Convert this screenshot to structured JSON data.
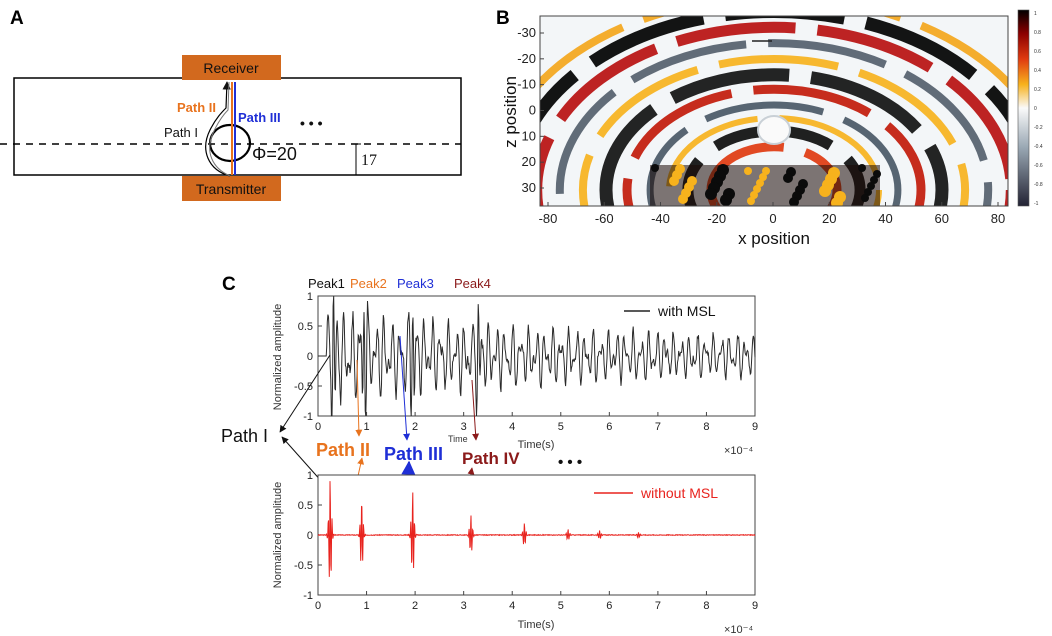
{
  "panel_a": {
    "letter": "A",
    "receiver_label": "Receiver",
    "transmitter_label": "Transmitter",
    "path1_label": "Path I",
    "path2_label": "Path II",
    "path3_label": "Path III",
    "ellipsis": "• • •",
    "diameter_label": "Φ=20",
    "offset_label": "17",
    "colors": {
      "box": "#d2691e",
      "path2": "#e8731e",
      "path3": "#1f2fd6"
    }
  },
  "panel_b": {
    "letter": "B",
    "xlabel": "x position",
    "ylabel": "z position",
    "xticks": [
      "-80",
      "-60",
      "-40",
      "-20",
      "0",
      "20",
      "40",
      "60",
      "80"
    ],
    "yticks": [
      "-30",
      "-20",
      "-10",
      "0",
      "10",
      "20",
      "30"
    ],
    "colorbar_ticks": [
      "1",
      "0.8",
      "0.6",
      "0.4",
      "0.2",
      "0",
      "-0.2",
      "-0.4",
      "-0.6",
      "-0.8",
      "-1"
    ]
  },
  "panel_c": {
    "letter": "C",
    "peak_labels": [
      {
        "text": "Peak1",
        "color": "#111111"
      },
      {
        "text": "Peak2",
        "color": "#e8731e"
      },
      {
        "text": "Peak3",
        "color": "#1f2fd6"
      },
      {
        "text": "Peak4",
        "color": "#8b1a1a"
      }
    ],
    "path_labels": [
      {
        "text": "Path I",
        "color": "#111111"
      },
      {
        "text": "Path II",
        "color": "#e8731e"
      },
      {
        "text": "Path III",
        "color": "#1f2fd6"
      },
      {
        "text": "Path IV",
        "color": "#8b1a1a"
      }
    ],
    "ellipsis": "• • •",
    "stray_label": "Time",
    "exponent": "×10⁻⁴"
  },
  "chart_data": [
    {
      "type": "line",
      "title": "",
      "xlabel": "Time(s)",
      "ylabel": "Normalized amplitude",
      "xlim": [
        0,
        9
      ],
      "ylim": [
        -1,
        1
      ],
      "x_scale_note": "×10^-4",
      "xticks": [
        "0",
        "1",
        "2",
        "3",
        "4",
        "5",
        "6",
        "7",
        "8",
        "9"
      ],
      "yticks": [
        "1",
        "0.5",
        "0",
        "-0.5",
        "-1"
      ],
      "series": [
        {
          "name": "with MSL",
          "color": "#222222",
          "start": 0.18,
          "dominant_peaks": [
            [
              0.32,
              0.95
            ],
            [
              0.95,
              1.0
            ],
            [
              1.95,
              0.9
            ],
            [
              3.3,
              0.75
            ]
          ]
        }
      ],
      "legend": "top-right"
    },
    {
      "type": "line",
      "title": "",
      "xlabel": "Time(s)",
      "ylabel": "Normalized amplitude",
      "xlim": [
        0,
        9
      ],
      "ylim": [
        -1,
        1
      ],
      "x_scale_note": "×10^-4",
      "xticks": [
        "0",
        "1",
        "2",
        "3",
        "4",
        "5",
        "6",
        "7",
        "8",
        "9"
      ],
      "yticks": [
        "1",
        "0.5",
        "0",
        "-0.5",
        "-1"
      ],
      "series": [
        {
          "name": "without MSL",
          "color": "#e8231e",
          "pulses": [
            [
              0.25,
              0.95
            ],
            [
              0.9,
              0.6
            ],
            [
              1.95,
              0.75
            ],
            [
              3.15,
              0.35
            ],
            [
              4.25,
              0.2
            ],
            [
              5.15,
              0.1
            ],
            [
              5.8,
              0.08
            ],
            [
              6.6,
              0.05
            ]
          ]
        }
      ],
      "legend": "top-right"
    }
  ]
}
